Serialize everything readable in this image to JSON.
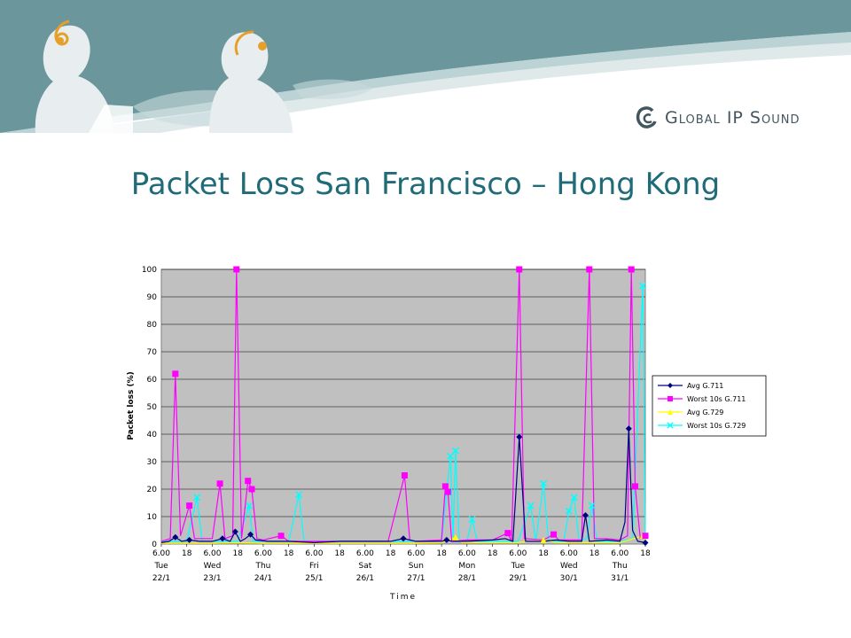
{
  "slide": {
    "title": "Packet Loss San Francisco – Hong Kong",
    "logo_text": "Global IP Sound",
    "logo_icon": "global-ip-sound-logo-icon",
    "banner_color": "#6b979c",
    "title_color": "#1f6b78"
  },
  "chart_data": {
    "type": "line",
    "ylabel": "Packet loss (%)",
    "xlabel": "Time",
    "ylim": [
      0,
      100
    ],
    "yticks": [
      0,
      10,
      20,
      30,
      40,
      50,
      60,
      70,
      80,
      90,
      100
    ],
    "xlim": [
      0,
      19
    ],
    "plot_background": "#c0c0c0",
    "grid": "horizontal",
    "legend_position": "right",
    "x_ticks": [
      {
        "x": 0,
        "top": "6.00",
        "day": "Tue",
        "date": "22/1"
      },
      {
        "x": 1,
        "top": "18"
      },
      {
        "x": 2,
        "top": "6.00",
        "day": "Wed",
        "date": "23/1"
      },
      {
        "x": 3,
        "top": "18"
      },
      {
        "x": 4,
        "top": "6.00",
        "day": "Thu",
        "date": "24/1"
      },
      {
        "x": 5,
        "top": "18"
      },
      {
        "x": 6,
        "top": "6.00",
        "day": "Fri",
        "date": "25/1"
      },
      {
        "x": 7,
        "top": "18"
      },
      {
        "x": 8,
        "top": "6.00",
        "day": "Sat",
        "date": "26/1"
      },
      {
        "x": 9,
        "top": "18"
      },
      {
        "x": 10,
        "top": "6.00",
        "day": "Sun",
        "date": "27/1"
      },
      {
        "x": 11,
        "top": "18"
      },
      {
        "x": 12,
        "top": "6.00",
        "day": "Mon",
        "date": "28/1"
      },
      {
        "x": 13,
        "top": "18"
      },
      {
        "x": 14,
        "top": "6.00",
        "day": "Tue",
        "date": "29/1"
      },
      {
        "x": 15,
        "top": "18"
      },
      {
        "x": 16,
        "top": "6.00",
        "day": "Wed",
        "date": "30/1"
      },
      {
        "x": 17,
        "top": "18"
      },
      {
        "x": 18,
        "top": "6.00",
        "day": "Thu",
        "date": "31/1"
      },
      {
        "x": 19,
        "top": "18"
      }
    ],
    "series": [
      {
        "name": "Avg G.711",
        "color": "#000080",
        "marker": "diamond",
        "points": [
          [
            0,
            0.5
          ],
          [
            0.3,
            1
          ],
          [
            0.55,
            2.5
          ],
          [
            0.8,
            1
          ],
          [
            1.1,
            1.5
          ],
          [
            1.5,
            1
          ],
          [
            2,
            1
          ],
          [
            2.4,
            2
          ],
          [
            2.7,
            1
          ],
          [
            2.9,
            4.5
          ],
          [
            3.1,
            1
          ],
          [
            3.3,
            2
          ],
          [
            3.5,
            3.5
          ],
          [
            3.7,
            1.5
          ],
          [
            4.2,
            1
          ],
          [
            5,
            1
          ],
          [
            6,
            0.5
          ],
          [
            7,
            1
          ],
          [
            8,
            1
          ],
          [
            9,
            1
          ],
          [
            9.5,
            2
          ],
          [
            10,
            1
          ],
          [
            11,
            1
          ],
          [
            11.2,
            1.5
          ],
          [
            11.4,
            1
          ],
          [
            12,
            1
          ],
          [
            13,
            1.5
          ],
          [
            13.5,
            2
          ],
          [
            13.8,
            1
          ],
          [
            14.05,
            39
          ],
          [
            14.3,
            1
          ],
          [
            15,
            1
          ],
          [
            15.5,
            1.5
          ],
          [
            16,
            1
          ],
          [
            16.5,
            1
          ],
          [
            16.65,
            10.5
          ],
          [
            16.8,
            1
          ],
          [
            17.5,
            1.5
          ],
          [
            18,
            1
          ],
          [
            18.2,
            8
          ],
          [
            18.35,
            42
          ],
          [
            18.5,
            5
          ],
          [
            18.7,
            1
          ],
          [
            19,
            0.5
          ]
        ],
        "marker_points": [
          [
            0.55,
            2.5
          ],
          [
            1.1,
            1.5
          ],
          [
            2.4,
            2
          ],
          [
            2.9,
            4.5
          ],
          [
            3.5,
            3.5
          ],
          [
            9.5,
            2
          ],
          [
            11.2,
            1.5
          ],
          [
            14.05,
            39
          ],
          [
            16.65,
            10.5
          ],
          [
            18.35,
            42
          ],
          [
            19,
            0.5
          ]
        ]
      },
      {
        "name": "Worst 10s G.711",
        "color": "#ff00ff",
        "marker": "square",
        "points": [
          [
            0,
            1
          ],
          [
            0.35,
            2
          ],
          [
            0.55,
            62
          ],
          [
            0.75,
            3
          ],
          [
            1.1,
            14
          ],
          [
            1.3,
            2
          ],
          [
            2,
            2
          ],
          [
            2.3,
            22
          ],
          [
            2.5,
            2
          ],
          [
            2.8,
            3
          ],
          [
            2.95,
            100
          ],
          [
            3.15,
            2
          ],
          [
            3.4,
            23
          ],
          [
            3.55,
            20
          ],
          [
            3.75,
            2
          ],
          [
            4,
            1.5
          ],
          [
            4.7,
            3
          ],
          [
            5,
            1
          ],
          [
            6,
            1
          ],
          [
            7,
            1
          ],
          [
            8,
            1
          ],
          [
            8.9,
            1
          ],
          [
            9.55,
            25
          ],
          [
            9.75,
            1.5
          ],
          [
            10,
            1
          ],
          [
            11,
            1.5
          ],
          [
            11.15,
            21
          ],
          [
            11.25,
            19
          ],
          [
            11.4,
            1
          ],
          [
            12,
            1.5
          ],
          [
            13,
            1.5
          ],
          [
            13.6,
            4
          ],
          [
            13.75,
            1
          ],
          [
            14.05,
            100
          ],
          [
            14.25,
            2
          ],
          [
            15,
            1.5
          ],
          [
            15.4,
            3.5
          ],
          [
            15.6,
            1.5
          ],
          [
            16,
            1.5
          ],
          [
            16.5,
            1.5
          ],
          [
            16.8,
            100
          ],
          [
            17,
            2
          ],
          [
            17.5,
            2
          ],
          [
            18,
            1.5
          ],
          [
            18.3,
            3
          ],
          [
            18.45,
            100
          ],
          [
            18.6,
            21
          ],
          [
            18.8,
            2
          ],
          [
            19,
            3
          ]
        ],
        "marker_points": [
          [
            0.55,
            62
          ],
          [
            1.1,
            14
          ],
          [
            2.3,
            22
          ],
          [
            2.95,
            100
          ],
          [
            3.4,
            23
          ],
          [
            3.55,
            20
          ],
          [
            4.7,
            3
          ],
          [
            9.55,
            25
          ],
          [
            11.15,
            21
          ],
          [
            11.25,
            19
          ],
          [
            13.6,
            4
          ],
          [
            14.05,
            100
          ],
          [
            15.4,
            3.5
          ],
          [
            16.8,
            100
          ],
          [
            18.45,
            100
          ],
          [
            18.6,
            21
          ],
          [
            19,
            3
          ]
        ]
      },
      {
        "name": "Avg G.729",
        "color": "#ffff00",
        "marker": "triangle",
        "points": [
          [
            0,
            0.3
          ],
          [
            1,
            0.3
          ],
          [
            2,
            0.3
          ],
          [
            3,
            0.5
          ],
          [
            4,
            0.3
          ],
          [
            5,
            0.3
          ],
          [
            6,
            0.3
          ],
          [
            7,
            0.3
          ],
          [
            8,
            0.3
          ],
          [
            9,
            0.3
          ],
          [
            10,
            0.3
          ],
          [
            11,
            0.5
          ],
          [
            11.55,
            2.5
          ],
          [
            11.8,
            0.5
          ],
          [
            12,
            0.5
          ],
          [
            13,
            0.5
          ],
          [
            14,
            0.5
          ],
          [
            15,
            1.5
          ],
          [
            15.5,
            0.5
          ],
          [
            16,
            0.5
          ],
          [
            17,
            0.5
          ],
          [
            18,
            0.5
          ],
          [
            18.9,
            3
          ],
          [
            19,
            0.5
          ]
        ],
        "marker_points": [
          [
            11.55,
            2.5
          ],
          [
            15,
            1.5
          ],
          [
            18.9,
            3
          ]
        ]
      },
      {
        "name": "Worst 10s G.729",
        "color": "#00ffff",
        "marker": "x",
        "points": [
          [
            0,
            1
          ],
          [
            0.5,
            1
          ],
          [
            1,
            1
          ],
          [
            1.4,
            17
          ],
          [
            1.6,
            1
          ],
          [
            2,
            1
          ],
          [
            3,
            1
          ],
          [
            3.45,
            14
          ],
          [
            3.6,
            1
          ],
          [
            4,
            1
          ],
          [
            4.5,
            1
          ],
          [
            5,
            1
          ],
          [
            5.4,
            18
          ],
          [
            5.6,
            1
          ],
          [
            6,
            1
          ],
          [
            7,
            1
          ],
          [
            8,
            1
          ],
          [
            9,
            1
          ],
          [
            10,
            1
          ],
          [
            11,
            1
          ],
          [
            11.35,
            32
          ],
          [
            11.45,
            2
          ],
          [
            11.55,
            34
          ],
          [
            11.7,
            1
          ],
          [
            12,
            1
          ],
          [
            12.2,
            9
          ],
          [
            12.4,
            1
          ],
          [
            13,
            1
          ],
          [
            14,
            1
          ],
          [
            14.5,
            14
          ],
          [
            14.7,
            1
          ],
          [
            15,
            22
          ],
          [
            15.2,
            1
          ],
          [
            15.8,
            1
          ],
          [
            16,
            12
          ],
          [
            16.2,
            17
          ],
          [
            16.4,
            1
          ],
          [
            16.7,
            2
          ],
          [
            16.9,
            14
          ],
          [
            17.1,
            1
          ],
          [
            17.5,
            1
          ],
          [
            18,
            1
          ],
          [
            18.5,
            2
          ],
          [
            18.9,
            94
          ],
          [
            19.0,
            1
          ]
        ],
        "marker_points": [
          [
            1.4,
            17
          ],
          [
            3.45,
            14
          ],
          [
            5.4,
            18
          ],
          [
            11.35,
            32
          ],
          [
            11.55,
            34
          ],
          [
            12.2,
            9
          ],
          [
            14.5,
            14
          ],
          [
            15,
            22
          ],
          [
            16,
            12
          ],
          [
            16.2,
            17
          ],
          [
            16.9,
            14
          ],
          [
            18.9,
            94
          ]
        ]
      }
    ]
  }
}
